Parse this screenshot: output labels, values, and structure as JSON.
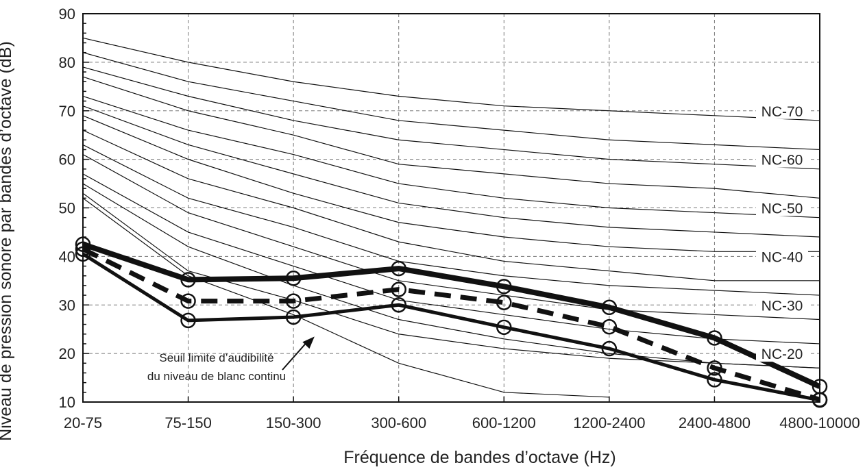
{
  "chart_data": {
    "type": "line",
    "xlabel": "Fréquence de bandes d’octave (Hz)",
    "ylabel": "Niveau de pression sonore par bandes d’octave (dB)",
    "categories": [
      "20-75",
      "75-150",
      "150-300",
      "300-600",
      "600-1200",
      "1200-2400",
      "2400-4800",
      "4800-10000"
    ],
    "ylim": [
      10,
      90
    ],
    "yticks": [
      10,
      20,
      30,
      40,
      50,
      60,
      70,
      80,
      90
    ],
    "grid": true,
    "nc_curves": [
      {
        "values": [
          85,
          80,
          76,
          73,
          71,
          70,
          69,
          68
        ]
      },
      {
        "values": [
          82,
          76,
          72,
          68,
          66,
          64,
          63,
          62
        ]
      },
      {
        "values": [
          79,
          73,
          68,
          64,
          62,
          60,
          59,
          58
        ]
      },
      {
        "values": [
          77,
          70,
          65,
          59,
          57,
          55,
          54,
          52
        ]
      },
      {
        "values": [
          73,
          66,
          61,
          55,
          52,
          50,
          49,
          48
        ]
      },
      {
        "values": [
          71,
          63,
          57,
          51,
          48,
          46,
          45,
          44
        ]
      },
      {
        "values": [
          69,
          60,
          53,
          47,
          44,
          42,
          41,
          41
        ]
      },
      {
        "values": [
          66,
          56,
          50,
          43,
          39,
          37,
          35,
          35
        ]
      },
      {
        "values": [
          63,
          52,
          46,
          39,
          36,
          34,
          33,
          32
        ]
      },
      {
        "values": [
          61,
          49,
          42,
          35,
          32,
          29,
          28,
          27
        ]
      },
      {
        "values": [
          57,
          45,
          38,
          31,
          28,
          25,
          23,
          22
        ]
      },
      {
        "values": [
          55,
          42,
          34,
          27,
          23,
          20,
          18,
          17
        ]
      },
      {
        "values": [
          53,
          37,
          31,
          24,
          21,
          19,
          18,
          17
        ]
      },
      {
        "values": [
          52,
          36,
          28,
          18,
          12,
          11
        ]
      }
    ],
    "nc_labels": [
      {
        "text": "NC-70",
        "value": 70
      },
      {
        "text": "NC-60",
        "value": 60
      },
      {
        "text": "NC-50",
        "value": 50
      },
      {
        "text": "NC-40",
        "value": 40
      },
      {
        "text": "NC-30",
        "value": 30
      },
      {
        "text": "NC-20",
        "value": 20
      }
    ],
    "series": [
      {
        "style": "thick",
        "values": [
          42.5,
          35.2,
          35.5,
          37.5,
          33.8,
          29.5,
          23.2,
          13.2
        ]
      },
      {
        "style": "dashed",
        "values": [
          41.5,
          30.8,
          30.8,
          33.2,
          30.5,
          25.5,
          17,
          10.5
        ]
      },
      {
        "style": "medium",
        "values": [
          40.5,
          26.8,
          27.5,
          30,
          25.4,
          21,
          14.6,
          10.4
        ]
      }
    ],
    "annotation": {
      "lines": [
        "Seuil limite d’audibilité",
        "du niveau de blanc continu"
      ],
      "arrow_to": {
        "x_index": 2.2,
        "y": 23.5
      }
    }
  }
}
